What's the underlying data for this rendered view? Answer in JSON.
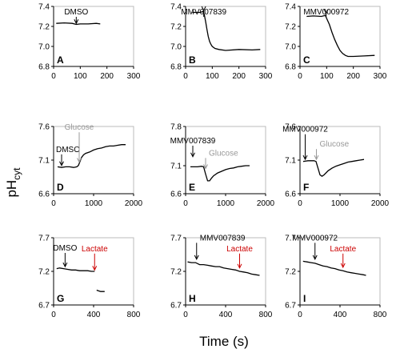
{
  "figure": {
    "ylabel_main": "pH",
    "ylabel_sub": "cyt",
    "xlabel": "Time (s)"
  },
  "chart_data": [
    {
      "type": "line",
      "panel": "A",
      "xlim": [
        0,
        300
      ],
      "ylim": [
        6.8,
        7.4
      ],
      "xticks": [
        0,
        100,
        200,
        300
      ],
      "yticks": [
        6.8,
        7.0,
        7.2,
        7.4
      ],
      "ytick_labels": [
        "6.8",
        "7.0",
        "7.2",
        "7.4"
      ],
      "series": [
        {
          "color": "#000000",
          "x": [
            10,
            40,
            70,
            85,
            100,
            130,
            160,
            175
          ],
          "y": [
            7.23,
            7.235,
            7.23,
            7.22,
            7.225,
            7.225,
            7.23,
            7.225
          ]
        }
      ],
      "annotations": [
        {
          "text": "DMSO",
          "x": 85,
          "color": "#000000",
          "tip_y": 7.23
        }
      ]
    },
    {
      "type": "line",
      "panel": "B",
      "xlim": [
        0,
        300
      ],
      "ylim": [
        6.8,
        7.4
      ],
      "xticks": [
        0,
        100,
        200,
        300
      ],
      "yticks": [
        6.8,
        7.0,
        7.2,
        7.4
      ],
      "ytick_labels": [
        "6.8",
        "7.0",
        "7.2",
        "7.4"
      ],
      "series": [
        {
          "color": "#000000",
          "x": [
            25,
            40,
            55,
            65,
            70,
            75,
            80,
            85,
            90,
            95,
            100,
            110,
            125,
            150,
            200,
            250,
            280
          ],
          "y": [
            7.34,
            7.34,
            7.34,
            7.35,
            7.32,
            7.25,
            7.17,
            7.1,
            7.05,
            7.02,
            7.0,
            6.98,
            6.97,
            6.96,
            6.97,
            6.965,
            6.97
          ]
        }
      ],
      "annotations": [
        {
          "text": "MMV007839",
          "x": 68,
          "color": "#000000",
          "tip_y": 7.36
        }
      ]
    },
    {
      "type": "line",
      "panel": "C",
      "xlim": [
        0,
        300
      ],
      "ylim": [
        6.8,
        7.4
      ],
      "xticks": [
        0,
        100,
        200,
        300
      ],
      "yticks": [
        6.8,
        7.0,
        7.2,
        7.4
      ],
      "ytick_labels": [
        "6.8",
        "7.0",
        "7.2",
        "7.4"
      ],
      "series": [
        {
          "color": "#000000",
          "x": [
            25,
            50,
            80,
            95,
            100,
            110,
            120,
            130,
            140,
            150,
            160,
            170,
            180,
            200,
            240,
            280
          ],
          "y": [
            7.3,
            7.305,
            7.3,
            7.31,
            7.28,
            7.22,
            7.14,
            7.07,
            7.01,
            6.96,
            6.93,
            6.91,
            6.9,
            6.9,
            6.905,
            6.91
          ]
        }
      ],
      "annotations": [
        {
          "text": "MMV000972",
          "x": 98,
          "color": "#000000",
          "tip_y": 7.33
        }
      ]
    },
    {
      "type": "line",
      "panel": "D",
      "xlim": [
        0,
        2000
      ],
      "ylim": [
        6.6,
        7.6
      ],
      "xticks": [
        0,
        1000,
        2000
      ],
      "yticks": [
        6.6,
        7.1,
        7.6
      ],
      "ytick_labels": [
        "6.6",
        "7.1",
        "7.6"
      ],
      "series": [
        {
          "color": "#000000",
          "x": [
            100,
            200,
            300,
            400,
            500,
            580,
            620,
            660,
            700,
            750,
            800,
            900,
            1000,
            1100,
            1200,
            1300,
            1400,
            1500,
            1600,
            1700,
            1800
          ],
          "y": [
            7.0,
            6.99,
            7.0,
            7.0,
            6.99,
            7.0,
            7.02,
            7.08,
            7.14,
            7.18,
            7.2,
            7.22,
            7.25,
            7.27,
            7.28,
            7.3,
            7.31,
            7.31,
            7.32,
            7.33,
            7.33
          ]
        }
      ],
      "annotations": [
        {
          "text": "DMSO",
          "x": 200,
          "color": "#000000",
          "tip_y": 7.02,
          "label_y": 7.22,
          "label_side": "left"
        },
        {
          "text": "Glucose",
          "x": 640,
          "color": "#999999",
          "tip_y": 7.07,
          "label_y": 7.55
        }
      ]
    },
    {
      "type": "line",
      "panel": "E",
      "xlim": [
        0,
        2000
      ],
      "ylim": [
        6.6,
        7.8
      ],
      "xticks": [
        0,
        1000,
        2000
      ],
      "yticks": [
        6.6,
        7.1,
        7.8
      ],
      "ytick_labels": [
        "6.6",
        "7.1",
        "7.8"
      ],
      "series": [
        {
          "color": "#000000",
          "x": [
            120,
            200,
            300,
            400,
            450,
            500,
            550,
            600,
            650,
            700,
            800,
            900,
            1000,
            1100,
            1200,
            1300,
            1400,
            1500,
            1600
          ],
          "y": [
            7.08,
            7.08,
            7.08,
            7.09,
            7.08,
            6.95,
            6.83,
            6.83,
            6.88,
            6.92,
            6.97,
            7.0,
            7.03,
            7.05,
            7.06,
            7.08,
            7.09,
            7.1,
            7.1
          ]
        }
      ],
      "annotations": [
        {
          "text": "MMV007839",
          "x": 180,
          "color": "#000000",
          "tip_y": 7.26,
          "label_y": 7.5
        },
        {
          "text": "Glucose",
          "x": 500,
          "color": "#999999",
          "tip_y": 7.05,
          "label_y": 7.28,
          "label_side": "right"
        }
      ]
    },
    {
      "type": "line",
      "panel": "F",
      "xlim": [
        0,
        2000
      ],
      "ylim": [
        6.6,
        7.6
      ],
      "xticks": [
        0,
        1000,
        2000
      ],
      "yticks": [
        6.6,
        7.1,
        7.6
      ],
      "ytick_labels": [
        "6.6",
        "7.1",
        "7.6"
      ],
      "series": [
        {
          "color": "#000000",
          "x": [
            80,
            200,
            300,
            350,
            400,
            450,
            500,
            550,
            600,
            650,
            700,
            800,
            900,
            1000,
            1100,
            1200,
            1300,
            1400,
            1500,
            1600
          ],
          "y": [
            7.08,
            7.09,
            7.09,
            7.09,
            7.08,
            6.98,
            6.88,
            6.86,
            6.88,
            6.91,
            6.94,
            6.98,
            7.01,
            7.03,
            7.05,
            7.07,
            7.08,
            7.09,
            7.1,
            7.11
          ]
        }
      ],
      "annotations": [
        {
          "text": "MMV000972",
          "x": 130,
          "color": "#000000",
          "tip_y": 7.11,
          "label_y": 7.52
        },
        {
          "text": "Glucose",
          "x": 410,
          "color": "#999999",
          "tip_y": 7.11,
          "label_y": 7.3,
          "label_side": "right"
        }
      ]
    },
    {
      "type": "line",
      "panel": "G",
      "xlim": [
        0,
        800
      ],
      "ylim": [
        6.7,
        7.7
      ],
      "xticks": [
        0,
        400,
        800
      ],
      "yticks": [
        6.7,
        7.2,
        7.7
      ],
      "ytick_labels": [
        "6.7",
        "7.2",
        "7.7"
      ],
      "series": [
        {
          "color": "#000000",
          "x": [
            30,
            60,
            100,
            140,
            180,
            220,
            260,
            300,
            340,
            380,
            410
          ],
          "y": [
            7.24,
            7.25,
            7.24,
            7.23,
            7.22,
            7.22,
            7.21,
            7.21,
            7.21,
            7.2,
            7.2
          ]
        },
        {
          "color": "#000000",
          "x": [
            430,
            450,
            470,
            490,
            510
          ],
          "y": [
            6.92,
            6.91,
            6.9,
            6.9,
            6.9
          ]
        }
      ],
      "annotations": [
        {
          "text": "DMSO",
          "x": 115,
          "color": "#000000",
          "tip_y": 7.27,
          "label_y": 7.51
        },
        {
          "text": "Lactate",
          "x": 410,
          "color": "#cc0000",
          "tip_y": 7.22,
          "label_y": 7.5
        }
      ]
    },
    {
      "type": "line",
      "panel": "H",
      "xlim": [
        0,
        800
      ],
      "ylim": [
        6.7,
        7.7
      ],
      "xticks": [
        0,
        400,
        800
      ],
      "yticks": [
        6.7,
        7.2,
        7.7
      ],
      "ytick_labels": [
        "6.7",
        "7.2",
        "7.7"
      ],
      "series": [
        {
          "color": "#000000",
          "x": [
            20,
            60,
            100,
            140,
            180,
            220,
            260,
            300,
            340,
            380,
            420,
            460,
            500,
            540,
            580,
            620,
            660,
            700,
            740
          ],
          "y": [
            7.34,
            7.33,
            7.33,
            7.3,
            7.3,
            7.29,
            7.28,
            7.27,
            7.27,
            7.25,
            7.24,
            7.23,
            7.22,
            7.2,
            7.19,
            7.18,
            7.16,
            7.15,
            7.14
          ]
        }
      ],
      "annotations": [
        {
          "text": "MMV007839",
          "x": 110,
          "color": "#000000",
          "tip_y": 7.38,
          "label_y": 7.66,
          "label_side": "right"
        },
        {
          "text": "Lactate",
          "x": 540,
          "color": "#cc0000",
          "tip_y": 7.25,
          "label_y": 7.5
        }
      ]
    },
    {
      "type": "line",
      "panel": "I",
      "xlim": [
        0,
        800
      ],
      "ylim": [
        6.7,
        7.7
      ],
      "xticks": [
        0,
        400,
        800
      ],
      "yticks": [
        6.7,
        7.2,
        7.7
      ],
      "ytick_labels": [
        "6.7",
        "7.2",
        "7.7"
      ],
      "series": [
        {
          "color": "#000000",
          "x": [
            30,
            70,
            110,
            150,
            190,
            230,
            270,
            310,
            350,
            390,
            430,
            470,
            510,
            550,
            590,
            630,
            660
          ],
          "y": [
            7.35,
            7.34,
            7.33,
            7.32,
            7.3,
            7.28,
            7.27,
            7.25,
            7.24,
            7.22,
            7.21,
            7.19,
            7.18,
            7.17,
            7.16,
            7.15,
            7.14
          ]
        }
      ],
      "annotations": [
        {
          "text": "MMV000972",
          "x": 150,
          "color": "#000000",
          "tip_y": 7.38,
          "label_y": 7.66
        },
        {
          "text": "Lactate",
          "x": 430,
          "color": "#cc0000",
          "tip_y": 7.26,
          "label_y": 7.5
        }
      ]
    }
  ]
}
